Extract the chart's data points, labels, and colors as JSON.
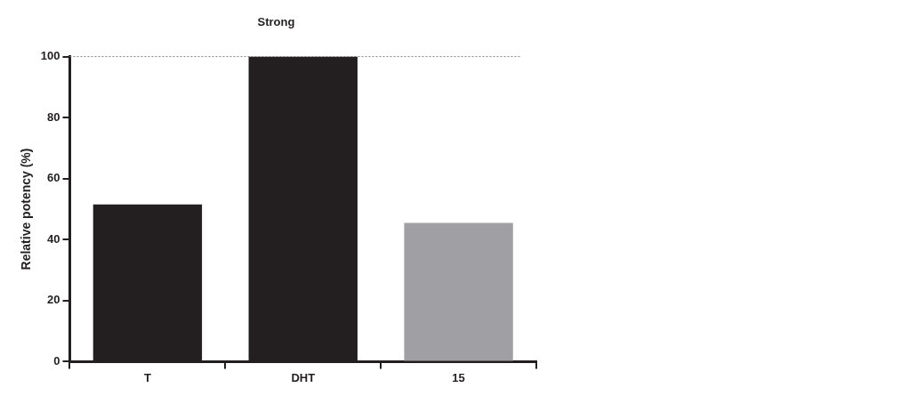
{
  "chart_data": {
    "type": "bar",
    "title": "Strong",
    "ylabel": "Relative potency (%)",
    "categories": [
      "T",
      "DHT",
      "15"
    ],
    "values": [
      51.5,
      100,
      45.5
    ],
    "colors": [
      "#231f20",
      "#231f20",
      "#a09fa4"
    ],
    "ylim": [
      0,
      100
    ],
    "yticks": [
      0,
      20,
      40,
      60,
      80,
      100
    ],
    "ref_lines": [
      {
        "axis": "y",
        "value": 100,
        "line_style": "dotted",
        "color": "#808080"
      }
    ],
    "grid": false,
    "legend": false
  }
}
